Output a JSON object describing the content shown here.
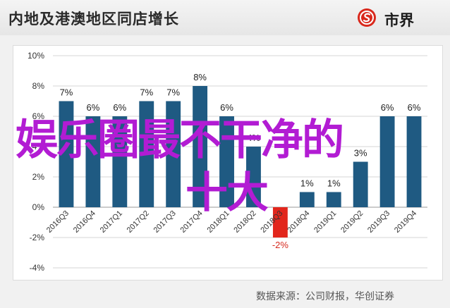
{
  "header": {
    "title": "内地及港澳地区同店增长"
  },
  "logo": {
    "text": "市界",
    "icon": "coin-s-icon",
    "color": "#d9281c"
  },
  "source": "数据来源：公司财报，华创证券",
  "overlay": {
    "line1": "娱乐圈最不干净的",
    "line2": "十大"
  },
  "colors": {
    "bar": "#1f5a82",
    "negative_bar": "#e2261c",
    "negative_label": "#d62a1f",
    "overlay": "#b21cd3"
  },
  "chart_data": {
    "type": "bar",
    "categories": [
      "2016Q3",
      "2016Q4",
      "2017Q1",
      "2017Q2",
      "2017Q3",
      "2017Q4",
      "2018Q1",
      "2018Q2",
      "2018Q3",
      "2018Q4",
      "2019Q1",
      "2019Q2",
      "2019Q3",
      "2019Q4"
    ],
    "values": [
      7,
      6,
      6,
      7,
      7,
      8,
      6,
      4,
      -2,
      1,
      1,
      3,
      6,
      6
    ],
    "data_labels": [
      "7%",
      "6%",
      "6%",
      "7%",
      "7%",
      "8%",
      "6%",
      "4%",
      "-2%",
      "1%",
      "1%",
      "3%",
      "6%",
      "6%"
    ],
    "ylim": [
      -4,
      10
    ],
    "yticks": [
      -4,
      -2,
      0,
      2,
      4,
      6,
      8,
      10
    ],
    "ytick_labels": [
      "-4%",
      "-2%",
      "0%",
      "2%",
      "4%",
      "6%",
      "8%",
      "10%"
    ],
    "grid": true,
    "legend": "none"
  }
}
